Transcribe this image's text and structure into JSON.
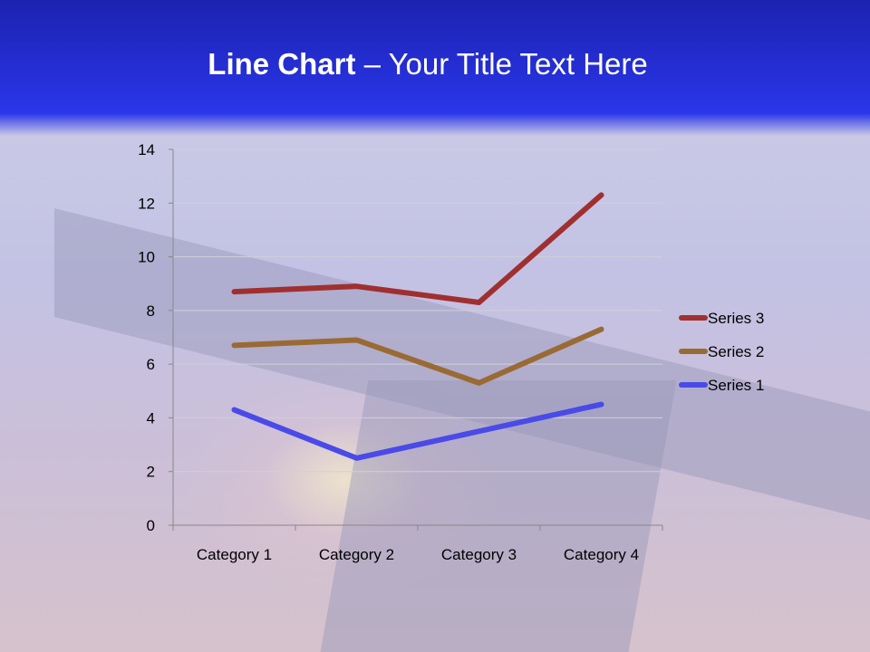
{
  "slide": {
    "title_bold": "Line Chart",
    "title_rest": " – Your Title Text Here"
  },
  "chart_data": {
    "type": "line",
    "stacking": "stacked",
    "categories": [
      "Category 1",
      "Category 2",
      "Category 3",
      "Category 4"
    ],
    "series": [
      {
        "name": "Series 1",
        "values": [
          4.3,
          2.5,
          3.5,
          4.5
        ],
        "color": "#4a4ae8"
      },
      {
        "name": "Series 2",
        "values": [
          2.4,
          4.4,
          1.8,
          2.8
        ],
        "color": "#9a6a34"
      },
      {
        "name": "Series 3",
        "values": [
          2,
          2,
          3,
          5
        ],
        "color": "#a03030"
      }
    ],
    "ylim": [
      0,
      14
    ],
    "yticks": [
      "0",
      "2",
      "4",
      "6",
      "8",
      "10",
      "12",
      "14"
    ],
    "grid": true,
    "legend": "right"
  }
}
